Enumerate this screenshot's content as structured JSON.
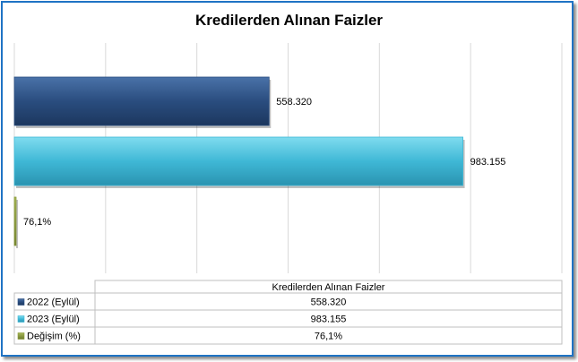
{
  "chart_data": {
    "type": "bar",
    "orientation": "horizontal",
    "title": "Kredilerden Alınan Faizler",
    "xlim": [
      0,
      1200000
    ],
    "grid": true,
    "series": [
      {
        "name": "2022 (Eylül)",
        "value": 558320,
        "label": "558.320",
        "color": "#2a4d7f"
      },
      {
        "name": "2023 (Eylül)",
        "value": 983155,
        "label": "983.155",
        "color": "#3fb8d6"
      },
      {
        "name": "Değişim (%)",
        "value": 76.1,
        "label": "76,1%",
        "color": "#8a9a3a"
      }
    ],
    "table": {
      "header": "Kredilerden Alınan Faizler",
      "rows": [
        {
          "name": "2022 (Eylül)",
          "value": "558.320"
        },
        {
          "name": "2023 (Eylül)",
          "value": "983.155"
        },
        {
          "name": "Değişim (%)",
          "value": "76,1%"
        }
      ]
    }
  }
}
